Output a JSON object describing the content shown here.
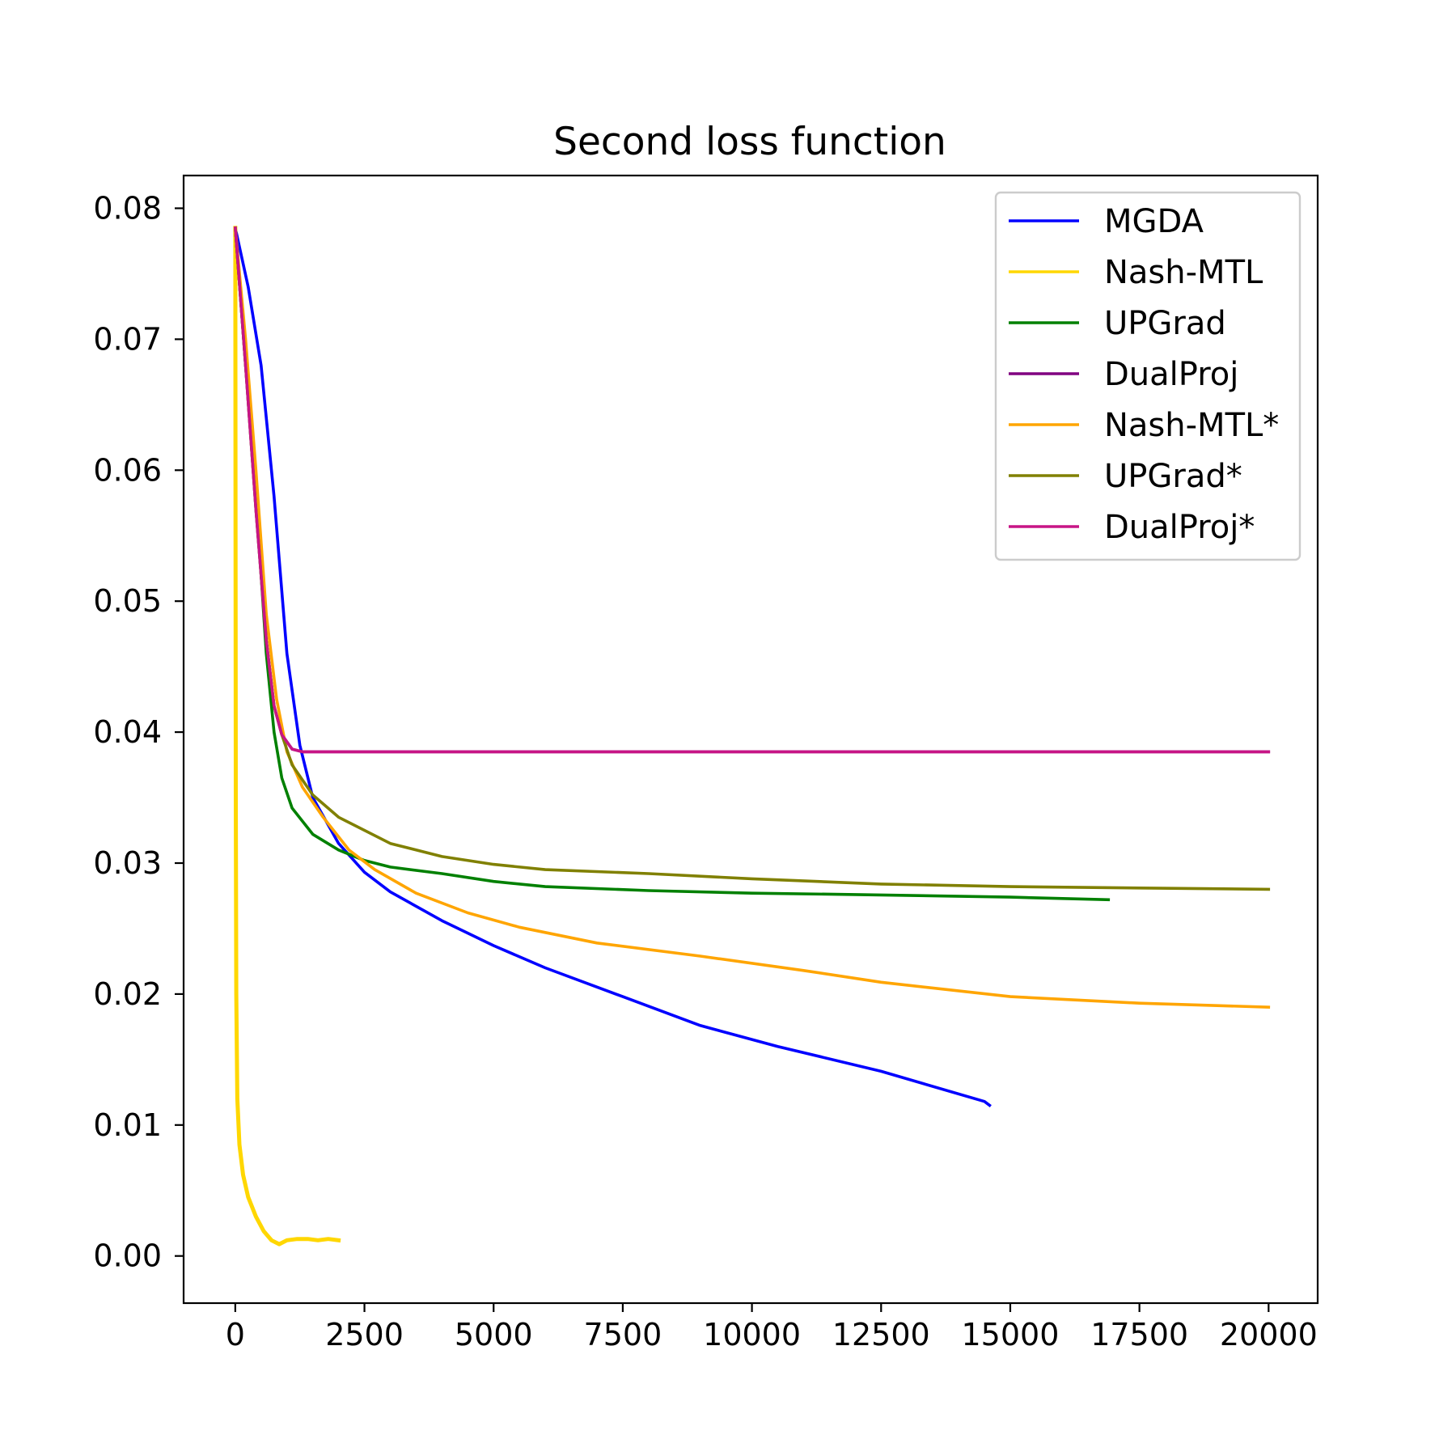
{
  "chart_data": {
    "type": "line",
    "title": "Second loss function",
    "xlabel": "",
    "ylabel": "",
    "xlim": [
      -1000,
      20950
    ],
    "ylim": [
      -0.0036,
      0.0825
    ],
    "x_ticks": [
      0,
      2500,
      5000,
      7500,
      10000,
      12500,
      15000,
      17500,
      20000
    ],
    "x_tick_labels": [
      "0",
      "2500",
      "5000",
      "7500",
      "10000",
      "12500",
      "15000",
      "17500",
      "20000"
    ],
    "y_ticks": [
      0.0,
      0.01,
      0.02,
      0.03,
      0.04,
      0.05,
      0.06,
      0.07,
      0.08
    ],
    "y_tick_labels": [
      "0.00",
      "0.01",
      "0.02",
      "0.03",
      "0.04",
      "0.05",
      "0.06",
      "0.07",
      "0.08"
    ],
    "grid": false,
    "legend_position": "top-right",
    "series": [
      {
        "name": "MGDA",
        "color": "#0000ff",
        "points": [
          [
            0,
            0.0785
          ],
          [
            250,
            0.074
          ],
          [
            500,
            0.068
          ],
          [
            750,
            0.058
          ],
          [
            1000,
            0.046
          ],
          [
            1250,
            0.039
          ],
          [
            1500,
            0.035
          ],
          [
            2000,
            0.0315
          ],
          [
            2500,
            0.0293
          ],
          [
            3000,
            0.0278
          ],
          [
            4000,
            0.0256
          ],
          [
            5000,
            0.0237
          ],
          [
            6000,
            0.022
          ],
          [
            7500,
            0.0198
          ],
          [
            9000,
            0.0176
          ],
          [
            10500,
            0.016
          ],
          [
            12500,
            0.0141
          ],
          [
            14500,
            0.0118
          ],
          [
            14600,
            0.0115
          ]
        ]
      },
      {
        "name": "Nash-MTL",
        "color": "#ffd700",
        "points": [
          [
            0,
            0.0785
          ],
          [
            5,
            0.055
          ],
          [
            10,
            0.035
          ],
          [
            20,
            0.02
          ],
          [
            40,
            0.012
          ],
          [
            80,
            0.0085
          ],
          [
            150,
            0.0062
          ],
          [
            250,
            0.0045
          ],
          [
            400,
            0.003
          ],
          [
            550,
            0.0019
          ],
          [
            700,
            0.0012
          ],
          [
            850,
            0.0009
          ],
          [
            1000,
            0.0012
          ],
          [
            1200,
            0.0013
          ],
          [
            1400,
            0.0013
          ],
          [
            1600,
            0.0012
          ],
          [
            1800,
            0.0013
          ],
          [
            2000,
            0.0012
          ]
        ]
      },
      {
        "name": "UPGrad",
        "color": "#008000",
        "points": [
          [
            0,
            0.0785
          ],
          [
            200,
            0.068
          ],
          [
            400,
            0.058
          ],
          [
            600,
            0.046
          ],
          [
            750,
            0.04
          ],
          [
            900,
            0.0365
          ],
          [
            1100,
            0.0342
          ],
          [
            1500,
            0.0322
          ],
          [
            2000,
            0.031
          ],
          [
            2500,
            0.0302
          ],
          [
            3000,
            0.0297
          ],
          [
            4000,
            0.0292
          ],
          [
            5000,
            0.0286
          ],
          [
            6000,
            0.0282
          ],
          [
            8000,
            0.0279
          ],
          [
            10000,
            0.0277
          ],
          [
            12000,
            0.0276
          ],
          [
            15000,
            0.0274
          ],
          [
            16900,
            0.0272
          ]
        ]
      },
      {
        "name": "DualProj",
        "color": "#800080",
        "points": [
          [
            0,
            0.0785
          ],
          [
            200,
            0.068
          ],
          [
            400,
            0.057
          ],
          [
            600,
            0.047
          ],
          [
            750,
            0.042
          ],
          [
            900,
            0.0398
          ],
          [
            1100,
            0.0387
          ],
          [
            1300,
            0.0385
          ],
          [
            2000,
            0.0385
          ],
          [
            5000,
            0.0385
          ],
          [
            10000,
            0.0385
          ],
          [
            15000,
            0.0385
          ],
          [
            20000,
            0.0385
          ]
        ]
      },
      {
        "name": "Nash-MTL*",
        "color": "#ffa500",
        "points": [
          [
            0,
            0.0785
          ],
          [
            200,
            0.07
          ],
          [
            400,
            0.06
          ],
          [
            600,
            0.049
          ],
          [
            800,
            0.0425
          ],
          [
            1000,
            0.0385
          ],
          [
            1300,
            0.0358
          ],
          [
            1700,
            0.0335
          ],
          [
            2200,
            0.031
          ],
          [
            2700,
            0.0295
          ],
          [
            3500,
            0.0277
          ],
          [
            4500,
            0.0262
          ],
          [
            5500,
            0.0251
          ],
          [
            7000,
            0.0239
          ],
          [
            9000,
            0.0229
          ],
          [
            11000,
            0.0218
          ],
          [
            12500,
            0.0209
          ],
          [
            15000,
            0.0198
          ],
          [
            17500,
            0.0193
          ],
          [
            20000,
            0.019
          ]
        ]
      },
      {
        "name": "UPGrad*",
        "color": "#808000",
        "points": [
          [
            0,
            0.0785
          ],
          [
            200,
            0.068
          ],
          [
            400,
            0.057
          ],
          [
            600,
            0.047
          ],
          [
            750,
            0.042
          ],
          [
            900,
            0.0398
          ],
          [
            1100,
            0.0375
          ],
          [
            1500,
            0.0352
          ],
          [
            2000,
            0.0335
          ],
          [
            3000,
            0.0315
          ],
          [
            4000,
            0.0305
          ],
          [
            5000,
            0.0299
          ],
          [
            6000,
            0.0295
          ],
          [
            8000,
            0.0292
          ],
          [
            10000,
            0.0288
          ],
          [
            12500,
            0.0284
          ],
          [
            15000,
            0.0282
          ],
          [
            17500,
            0.0281
          ],
          [
            20000,
            0.028
          ]
        ]
      },
      {
        "name": "DualProj*",
        "color": "#c71585",
        "points": [
          [
            0,
            0.0785
          ],
          [
            200,
            0.068
          ],
          [
            400,
            0.057
          ],
          [
            600,
            0.047
          ],
          [
            750,
            0.042
          ],
          [
            900,
            0.0398
          ],
          [
            1100,
            0.0387
          ],
          [
            1300,
            0.0385
          ],
          [
            2000,
            0.0385
          ],
          [
            5000,
            0.0385
          ],
          [
            10000,
            0.0385
          ],
          [
            15000,
            0.0385
          ],
          [
            20000,
            0.0385
          ]
        ]
      }
    ]
  }
}
